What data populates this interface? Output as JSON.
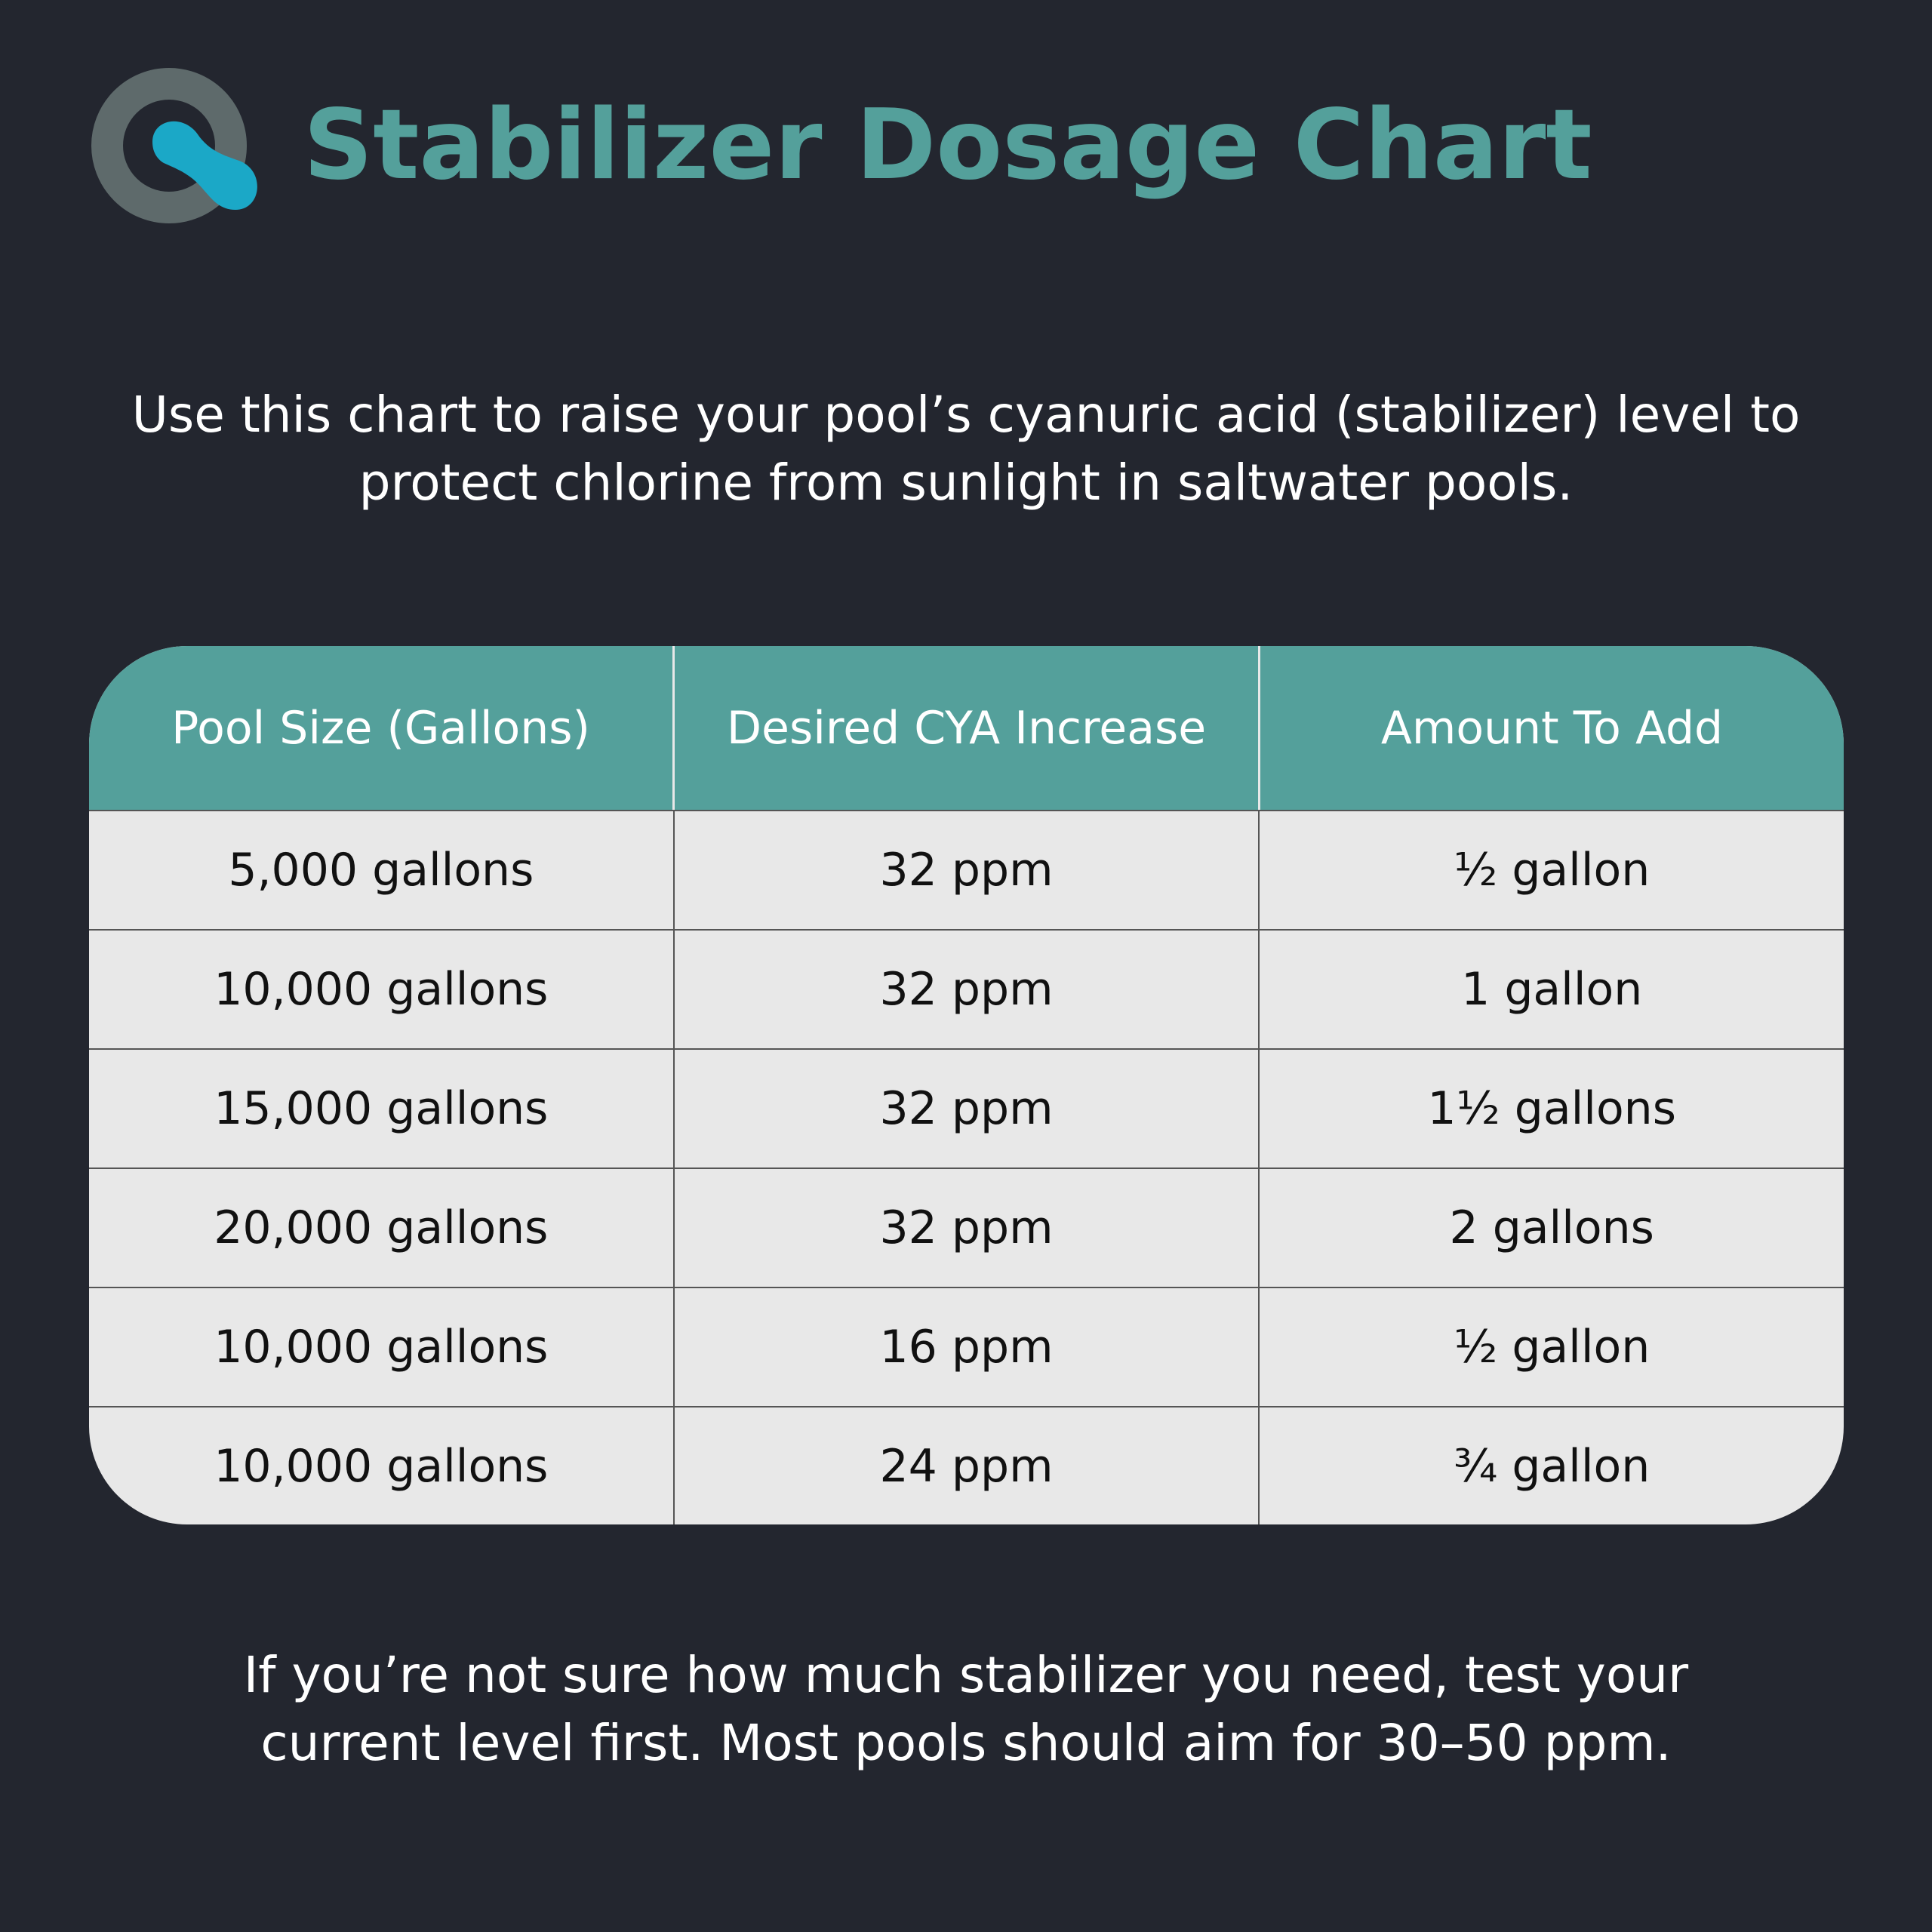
{
  "header": {
    "title": "Stabilizer Dosage Chart"
  },
  "intro": "Use this chart to raise your pool’s cyanuric acid (stabilizer) level to protect chlorine from sunlight in saltwater pools.",
  "table": {
    "columns": [
      "Pool Size (Gallons)",
      "Desired CYA Increase",
      "Amount To Add"
    ],
    "rows": [
      [
        "5,000 gallons",
        "32 ppm",
        "½ gallon"
      ],
      [
        "10,000 gallons",
        "32 ppm",
        "1 gallon"
      ],
      [
        "15,000 gallons",
        "32 ppm",
        "1½ gallons"
      ],
      [
        "20,000 gallons",
        "32 ppm",
        "2 gallons"
      ],
      [
        "10,000 gallons",
        "16 ppm",
        "½ gallon"
      ],
      [
        "10,000 gallons",
        "24 ppm",
        "¾ gallon"
      ]
    ]
  },
  "footer": "If you’re not sure how much stabilizer you need, test your current level first. Most pools should aim for 30–50 ppm."
}
